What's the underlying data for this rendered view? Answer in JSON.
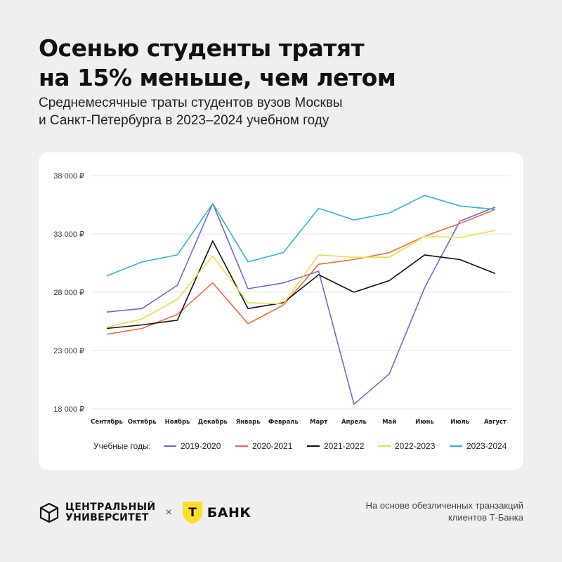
{
  "header": {
    "title_line1": "Осенью студенты тратят",
    "title_line2": "на 15% меньше, чем летом",
    "subtitle_line1": "Среднемесячные траты студентов вузов Москвы",
    "subtitle_line2": "и Санкт-Петербурга в 2023–2024 учебном году"
  },
  "chart_data": {
    "type": "line",
    "title": "",
    "xlabel": "",
    "ylabel": "",
    "categories": [
      "Сентябрь",
      "Октябрь",
      "Ноябрь",
      "Декабрь",
      "Январь",
      "Февраль",
      "Март",
      "Апрель",
      "Май",
      "Июнь",
      "Июль",
      "Август"
    ],
    "ylim": [
      18000,
      38000
    ],
    "yticks": [
      18000,
      23000,
      28000,
      33000,
      38000
    ],
    "ytick_labels": [
      "18 000 ₽",
      "23 000 ₽",
      "28 000 ₽",
      "33 000 ₽",
      "38 000 ₽"
    ],
    "grid": true,
    "legend_position": "bottom",
    "legend_title": "Учебные годы:",
    "series": [
      {
        "name": "2019-2020",
        "color": "#7b61e0",
        "values": [
          26300,
          26600,
          28600,
          35600,
          28300,
          28800,
          29800,
          18400,
          21000,
          28400,
          34100,
          35300
        ]
      },
      {
        "name": "2020-2021",
        "color": "#ef6a3a",
        "values": [
          24400,
          24900,
          26100,
          28800,
          25300,
          26900,
          30400,
          30800,
          31400,
          32800,
          33900,
          35100
        ]
      },
      {
        "name": "2021-2022",
        "color": "#111111",
        "values": [
          24900,
          25200,
          25600,
          32400,
          26600,
          27100,
          29500,
          28000,
          29000,
          31200,
          30800,
          29600
        ]
      },
      {
        "name": "2022-2023",
        "color": "#f2dd3a",
        "values": [
          25000,
          25700,
          27400,
          31100,
          27100,
          27000,
          31200,
          31000,
          31000,
          32800,
          32700,
          33300
        ]
      },
      {
        "name": "2023-2024",
        "color": "#2bb5e0",
        "values": [
          29400,
          30600,
          31200,
          35600,
          30600,
          31400,
          35200,
          34200,
          34800,
          36300,
          35400,
          35100
        ]
      }
    ]
  },
  "footer": {
    "logo_cu_line1": "ЦЕНТРАЛЬНЫЙ",
    "logo_cu_line2": "УНИВЕРСИТЕТ",
    "times": "×",
    "logo_tbank_letter": "Т",
    "logo_tbank_text": "БАНК",
    "source_line1": "На основе обезличенных транзакций",
    "source_line2": "клиентов Т-Банка"
  },
  "colors": {
    "background": "#efefef",
    "card": "#ffffff",
    "tbank_yellow": "#ffdd2d"
  }
}
